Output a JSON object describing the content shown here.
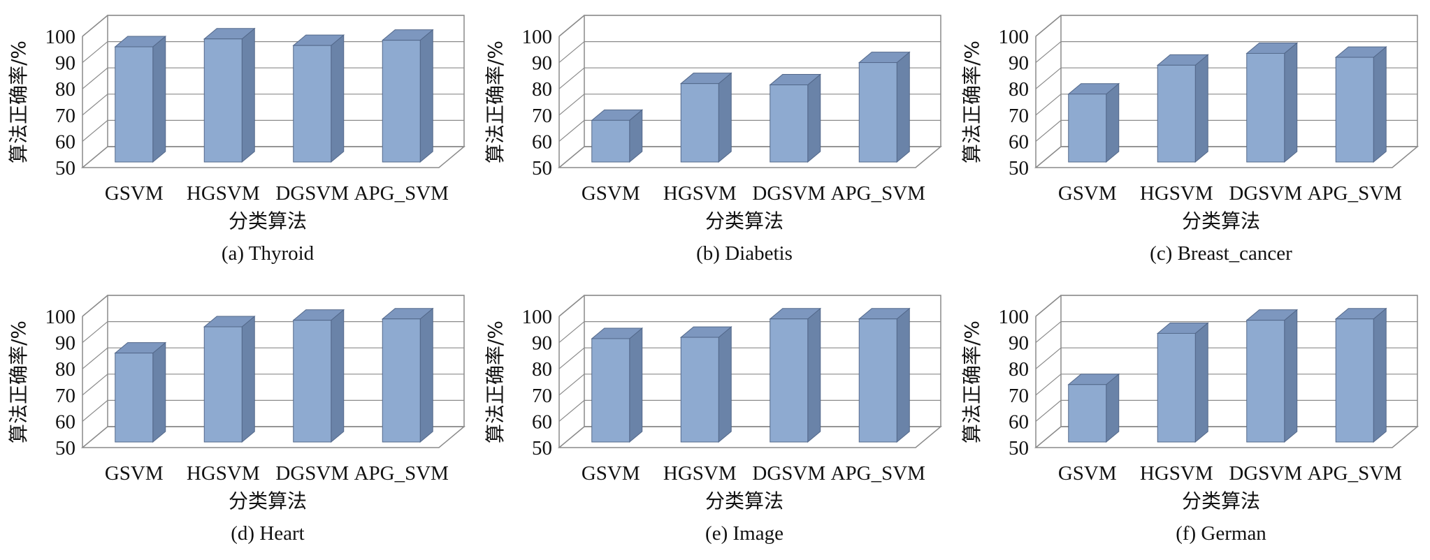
{
  "figure": {
    "y_axis_label": "算法正确率/%",
    "x_axis_label": "分类算法"
  },
  "colors": {
    "bar_front": "#8eaad0",
    "bar_side": "#6a83a8",
    "bar_top": "#7d97bf",
    "bar_edge": "#53688a",
    "grid": "#8a8a8a",
    "frame": "#8a8a8a"
  },
  "chart_data": [
    {
      "type": "bar",
      "title": "(a) Thyroid",
      "categories": [
        "GSVM",
        "HGSVM",
        "DGSVM",
        "APG_SVM"
      ],
      "values": [
        96,
        99,
        96.5,
        98.5
      ],
      "ylim": [
        50,
        100
      ],
      "yticks": [
        50,
        60,
        70,
        80,
        90,
        100
      ],
      "xlabel": "分类算法",
      "ylabel": "算法正确率/%",
      "grid": true
    },
    {
      "type": "bar",
      "title": "(b) Diabetis",
      "categories": [
        "GSVM",
        "HGSVM",
        "DGSVM",
        "APG_SVM"
      ],
      "values": [
        68,
        82,
        81.5,
        90
      ],
      "ylim": [
        50,
        100
      ],
      "yticks": [
        50,
        60,
        70,
        80,
        90,
        100
      ],
      "xlabel": "分类算法",
      "ylabel": "算法正确率/%",
      "grid": true
    },
    {
      "type": "bar",
      "title": "(c) Breast_cancer",
      "categories": [
        "GSVM",
        "HGSVM",
        "DGSVM",
        "APG_SVM"
      ],
      "values": [
        78,
        89,
        93.5,
        92
      ],
      "ylim": [
        50,
        100
      ],
      "yticks": [
        50,
        60,
        70,
        80,
        90,
        100
      ],
      "xlabel": "分类算法",
      "ylabel": "算法正确率/%",
      "grid": true
    },
    {
      "type": "bar",
      "title": "(d) Heart",
      "categories": [
        "GSVM",
        "HGSVM",
        "DGSVM",
        "APG_SVM"
      ],
      "values": [
        86,
        96,
        98.5,
        99
      ],
      "ylim": [
        50,
        100
      ],
      "yticks": [
        50,
        60,
        70,
        80,
        90,
        100
      ],
      "xlabel": "分类算法",
      "ylabel": "算法正确率/%",
      "grid": true
    },
    {
      "type": "bar",
      "title": "(e) Image",
      "categories": [
        "GSVM",
        "HGSVM",
        "DGSVM",
        "APG_SVM"
      ],
      "values": [
        91.5,
        92,
        99,
        99
      ],
      "ylim": [
        50,
        100
      ],
      "yticks": [
        50,
        60,
        70,
        80,
        90,
        100
      ],
      "xlabel": "分类算法",
      "ylabel": "算法正确率/%",
      "grid": true
    },
    {
      "type": "bar",
      "title": "(f) German",
      "categories": [
        "GSVM",
        "HGSVM",
        "DGSVM",
        "APG_SVM"
      ],
      "values": [
        74,
        93.5,
        98.5,
        99
      ],
      "ylim": [
        50,
        100
      ],
      "yticks": [
        50,
        60,
        70,
        80,
        90,
        100
      ],
      "xlabel": "分类算法",
      "ylabel": "算法正确率/%",
      "grid": true
    }
  ]
}
